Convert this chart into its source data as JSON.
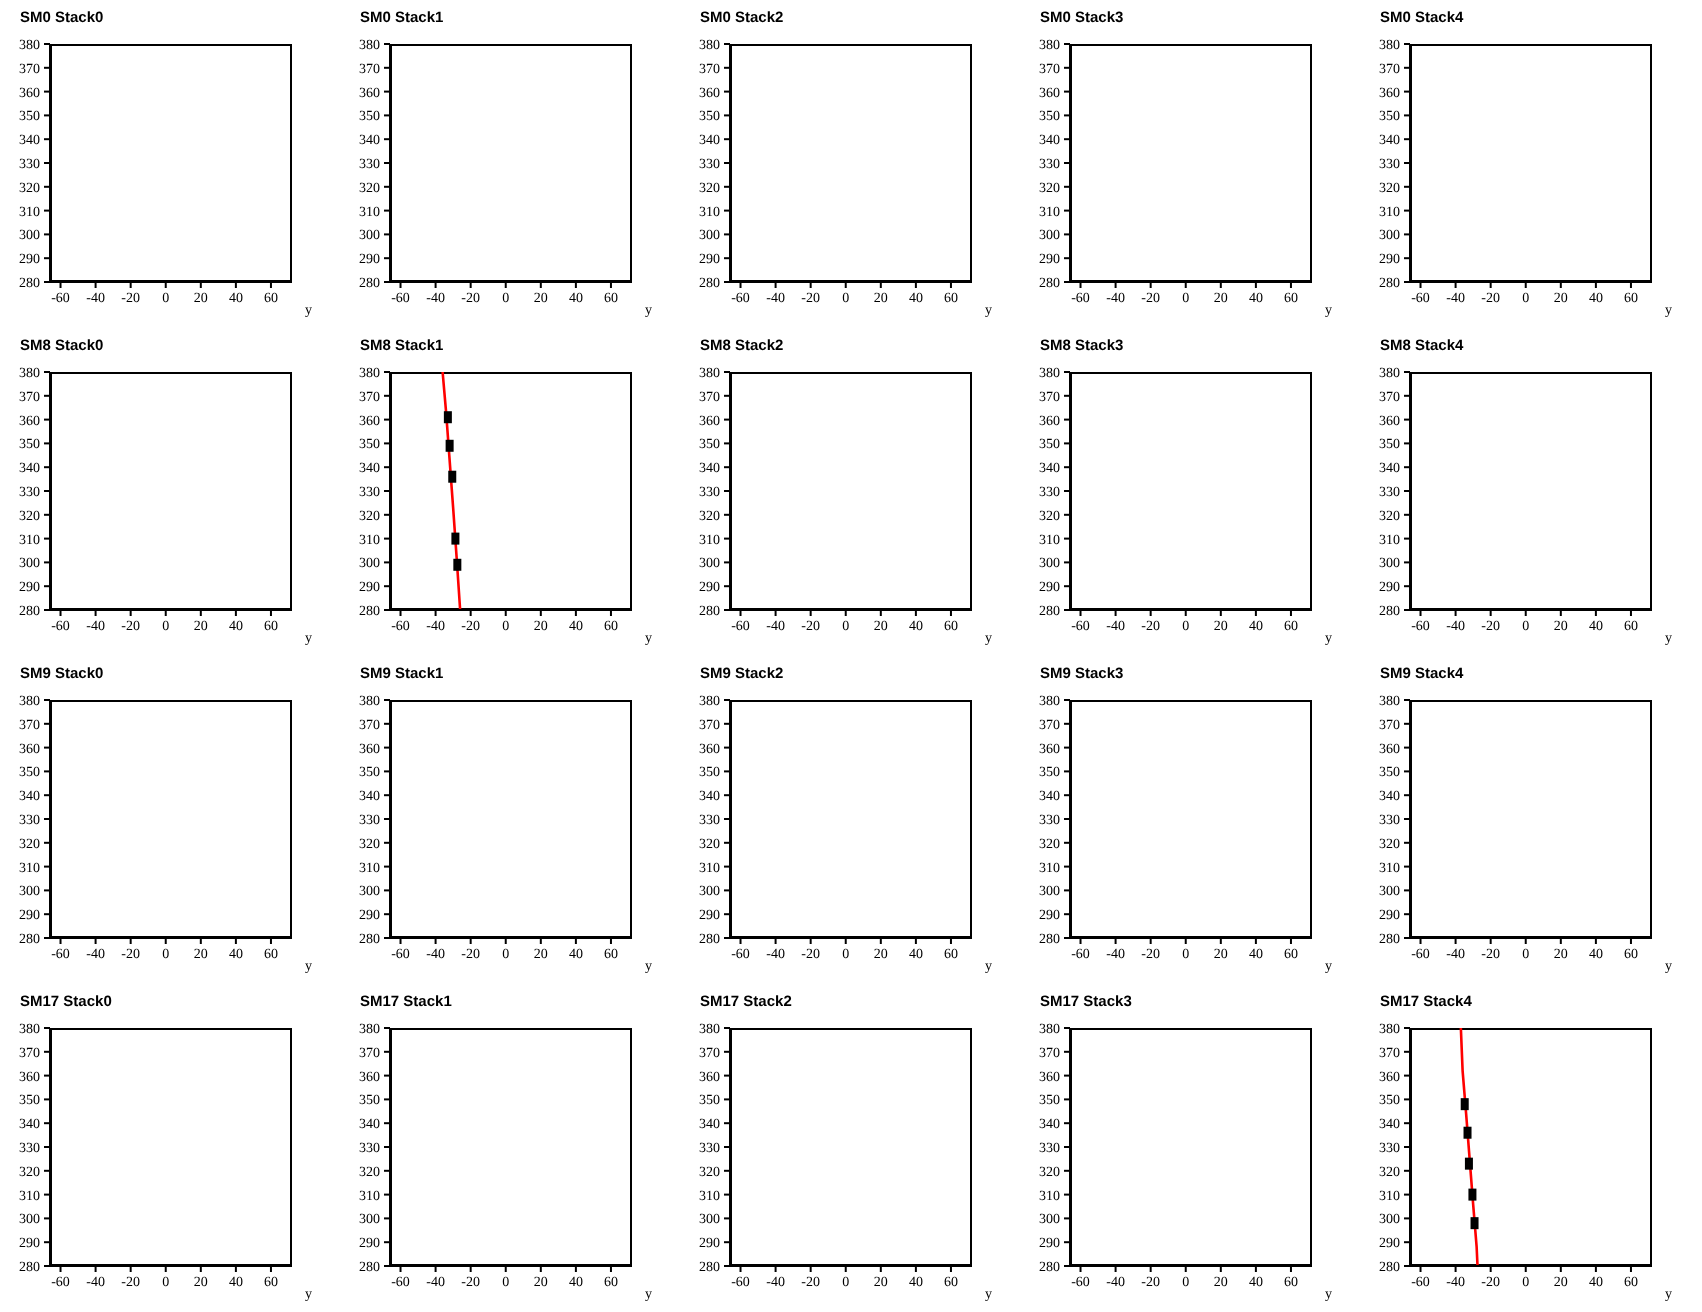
{
  "chart_data": [
    {
      "type": "scatter",
      "title": "SM0 Stack0",
      "xlabel": "y",
      "xlim": [
        -66,
        72
      ],
      "ylim": [
        280,
        380
      ],
      "xticks": [
        -60,
        -40,
        -20,
        0,
        20,
        40,
        60
      ],
      "yticks": [
        280,
        290,
        300,
        310,
        320,
        330,
        340,
        350,
        360,
        370,
        380
      ]
    },
    {
      "type": "scatter",
      "title": "SM0 Stack1",
      "xlabel": "y",
      "xlim": [
        -66,
        72
      ],
      "ylim": [
        280,
        380
      ],
      "xticks": [
        -60,
        -40,
        -20,
        0,
        20,
        40,
        60
      ],
      "yticks": [
        280,
        290,
        300,
        310,
        320,
        330,
        340,
        350,
        360,
        370,
        380
      ]
    },
    {
      "type": "scatter",
      "title": "SM0 Stack2",
      "xlabel": "y",
      "xlim": [
        -66,
        72
      ],
      "ylim": [
        280,
        380
      ],
      "xticks": [
        -60,
        -40,
        -20,
        0,
        20,
        40,
        60
      ],
      "yticks": [
        280,
        290,
        300,
        310,
        320,
        330,
        340,
        350,
        360,
        370,
        380
      ]
    },
    {
      "type": "scatter",
      "title": "SM0 Stack3",
      "xlabel": "y",
      "xlim": [
        -66,
        72
      ],
      "ylim": [
        280,
        380
      ],
      "xticks": [
        -60,
        -40,
        -20,
        0,
        20,
        40,
        60
      ],
      "yticks": [
        280,
        290,
        300,
        310,
        320,
        330,
        340,
        350,
        360,
        370,
        380
      ]
    },
    {
      "type": "scatter",
      "title": "SM0 Stack4",
      "xlabel": "y",
      "xlim": [
        -66,
        72
      ],
      "ylim": [
        280,
        380
      ],
      "xticks": [
        -60,
        -40,
        -20,
        0,
        20,
        40,
        60
      ],
      "yticks": [
        280,
        290,
        300,
        310,
        320,
        330,
        340,
        350,
        360,
        370,
        380
      ]
    },
    {
      "type": "scatter",
      "title": "SM8 Stack0",
      "xlabel": "y",
      "xlim": [
        -66,
        72
      ],
      "ylim": [
        280,
        380
      ],
      "xticks": [
        -60,
        -40,
        -20,
        0,
        20,
        40,
        60
      ],
      "yticks": [
        280,
        290,
        300,
        310,
        320,
        330,
        340,
        350,
        360,
        370,
        380
      ]
    },
    {
      "type": "scatter",
      "title": "SM8 Stack1",
      "xlabel": "y",
      "xlim": [
        -66,
        72
      ],
      "ylim": [
        280,
        380
      ],
      "xticks": [
        -60,
        -40,
        -20,
        0,
        20,
        40,
        60
      ],
      "yticks": [
        280,
        290,
        300,
        310,
        320,
        330,
        340,
        350,
        360,
        370,
        380
      ],
      "series": [
        {
          "type": "line",
          "color": "#ff0000",
          "marker": "none",
          "x": [
            -36,
            -34,
            -32,
            -30,
            -28,
            -26
          ],
          "values": [
            380,
            363,
            343,
            323,
            302,
            280
          ]
        },
        {
          "type": "scatter",
          "color": "#000000",
          "marker": "square",
          "x": [
            -33,
            -32,
            -30.5,
            -28.7,
            -27.6
          ],
          "values": [
            361,
            349,
            336,
            310,
            299
          ]
        }
      ]
    },
    {
      "type": "scatter",
      "title": "SM8 Stack2",
      "xlabel": "y",
      "xlim": [
        -66,
        72
      ],
      "ylim": [
        280,
        380
      ],
      "xticks": [
        -60,
        -40,
        -20,
        0,
        20,
        40,
        60
      ],
      "yticks": [
        280,
        290,
        300,
        310,
        320,
        330,
        340,
        350,
        360,
        370,
        380
      ]
    },
    {
      "type": "scatter",
      "title": "SM8 Stack3",
      "xlabel": "y",
      "xlim": [
        -66,
        72
      ],
      "ylim": [
        280,
        380
      ],
      "xticks": [
        -60,
        -40,
        -20,
        0,
        20,
        40,
        60
      ],
      "yticks": [
        280,
        290,
        300,
        310,
        320,
        330,
        340,
        350,
        360,
        370,
        380
      ]
    },
    {
      "type": "scatter",
      "title": "SM8 Stack4",
      "xlabel": "y",
      "xlim": [
        -66,
        72
      ],
      "ylim": [
        280,
        380
      ],
      "xticks": [
        -60,
        -40,
        -20,
        0,
        20,
        40,
        60
      ],
      "yticks": [
        280,
        290,
        300,
        310,
        320,
        330,
        340,
        350,
        360,
        370,
        380
      ]
    },
    {
      "type": "scatter",
      "title": "SM9 Stack0",
      "xlabel": "y",
      "xlim": [
        -66,
        72
      ],
      "ylim": [
        280,
        380
      ],
      "xticks": [
        -60,
        -40,
        -20,
        0,
        20,
        40,
        60
      ],
      "yticks": [
        280,
        290,
        300,
        310,
        320,
        330,
        340,
        350,
        360,
        370,
        380
      ]
    },
    {
      "type": "scatter",
      "title": "SM9 Stack1",
      "xlabel": "y",
      "xlim": [
        -66,
        72
      ],
      "ylim": [
        280,
        380
      ],
      "xticks": [
        -60,
        -40,
        -20,
        0,
        20,
        40,
        60
      ],
      "yticks": [
        280,
        290,
        300,
        310,
        320,
        330,
        340,
        350,
        360,
        370,
        380
      ]
    },
    {
      "type": "scatter",
      "title": "SM9 Stack2",
      "xlabel": "y",
      "xlim": [
        -66,
        72
      ],
      "ylim": [
        280,
        380
      ],
      "xticks": [
        -60,
        -40,
        -20,
        0,
        20,
        40,
        60
      ],
      "yticks": [
        280,
        290,
        300,
        310,
        320,
        330,
        340,
        350,
        360,
        370,
        380
      ]
    },
    {
      "type": "scatter",
      "title": "SM9 Stack3",
      "xlabel": "y",
      "xlim": [
        -66,
        72
      ],
      "ylim": [
        280,
        380
      ],
      "xticks": [
        -60,
        -40,
        -20,
        0,
        20,
        40,
        60
      ],
      "yticks": [
        280,
        290,
        300,
        310,
        320,
        330,
        340,
        350,
        360,
        370,
        380
      ]
    },
    {
      "type": "scatter",
      "title": "SM9 Stack4",
      "xlabel": "y",
      "xlim": [
        -66,
        72
      ],
      "ylim": [
        280,
        380
      ],
      "xticks": [
        -60,
        -40,
        -20,
        0,
        20,
        40,
        60
      ],
      "yticks": [
        280,
        290,
        300,
        310,
        320,
        330,
        340,
        350,
        360,
        370,
        380
      ]
    },
    {
      "type": "scatter",
      "title": "SM17 Stack0",
      "xlabel": "y",
      "xlim": [
        -66,
        72
      ],
      "ylim": [
        280,
        380
      ],
      "xticks": [
        -60,
        -40,
        -20,
        0,
        20,
        40,
        60
      ],
      "yticks": [
        280,
        290,
        300,
        310,
        320,
        330,
        340,
        350,
        360,
        370,
        380
      ]
    },
    {
      "type": "scatter",
      "title": "SM17 Stack1",
      "xlabel": "y",
      "xlim": [
        -66,
        72
      ],
      "ylim": [
        280,
        380
      ],
      "xticks": [
        -60,
        -40,
        -20,
        0,
        20,
        40,
        60
      ],
      "yticks": [
        280,
        290,
        300,
        310,
        320,
        330,
        340,
        350,
        360,
        370,
        380
      ]
    },
    {
      "type": "scatter",
      "title": "SM17 Stack2",
      "xlabel": "y",
      "xlim": [
        -66,
        72
      ],
      "ylim": [
        280,
        380
      ],
      "xticks": [
        -60,
        -40,
        -20,
        0,
        20,
        40,
        60
      ],
      "yticks": [
        280,
        290,
        300,
        310,
        320,
        330,
        340,
        350,
        360,
        370,
        380
      ]
    },
    {
      "type": "scatter",
      "title": "SM17 Stack3",
      "xlabel": "y",
      "xlim": [
        -66,
        72
      ],
      "ylim": [
        280,
        380
      ],
      "xticks": [
        -60,
        -40,
        -20,
        0,
        20,
        40,
        60
      ],
      "yticks": [
        280,
        290,
        300,
        310,
        320,
        330,
        340,
        350,
        360,
        370,
        380
      ]
    },
    {
      "type": "scatter",
      "title": "SM17 Stack4",
      "xlabel": "y",
      "xlim": [
        -66,
        72
      ],
      "ylim": [
        280,
        380
      ],
      "xticks": [
        -60,
        -40,
        -20,
        0,
        20,
        40,
        60
      ],
      "yticks": [
        280,
        290,
        300,
        310,
        320,
        330,
        340,
        350,
        360,
        370,
        380
      ],
      "series": [
        {
          "type": "line",
          "color": "#ff0000",
          "marker": "none",
          "x": [
            -37,
            -36,
            -34,
            -32,
            -30,
            -28,
            -27.5
          ],
          "values": [
            380,
            362,
            344,
            325,
            306,
            288,
            280
          ]
        },
        {
          "type": "scatter",
          "color": "#000000",
          "marker": "square",
          "x": [
            -34.8,
            -33.2,
            -32.4,
            -30.4,
            -29.2
          ],
          "values": [
            348,
            336,
            323,
            310,
            298
          ]
        }
      ]
    }
  ]
}
